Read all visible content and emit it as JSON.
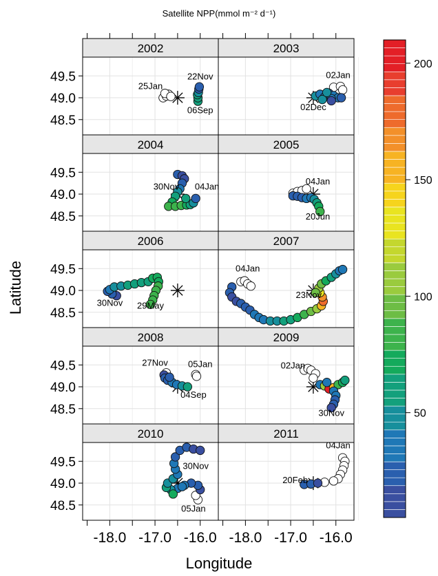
{
  "chart_data": {
    "type": "scatter",
    "title": "Satellite NPP(mmol m⁻² d⁻¹)",
    "xlabel": "Longitude",
    "ylabel": "Latitude",
    "xlim": [
      -18.6,
      -15.6
    ],
    "ylim": [
      48.15,
      49.93
    ],
    "x_ticks": [
      -18.0,
      -17.0,
      -16.0
    ],
    "x_tick_labels": [
      "-18.0",
      "-17.0",
      "-16.0"
    ],
    "y_ticks": [
      48.5,
      49.0,
      49.5
    ],
    "y_tick_labels": [
      "48.5",
      "49.0",
      "49.5"
    ],
    "grid": true,
    "station": {
      "lon": -16.5,
      "lat": 49.0
    },
    "colorbar": {
      "range": [
        5,
        210
      ],
      "ticks": [
        50,
        100,
        150,
        200
      ],
      "tick_labels": [
        "50",
        "100",
        "150",
        "200"
      ],
      "colors": [
        "#3a4fa0",
        "#2a5fae",
        "#1f78b6",
        "#178f9c",
        "#13a07c",
        "#14aa5c",
        "#3db34c",
        "#6dbd45",
        "#9acb3e",
        "#c4d72e",
        "#e9e420",
        "#f6d41d",
        "#f7b323",
        "#f3902a",
        "#ee6b2c",
        "#e83e2e",
        "#e31f26"
      ]
    },
    "panels": [
      {
        "year": "2002",
        "labels": [
          {
            "text": "25Jan",
            "lon": -17.1,
            "lat": 49.2
          },
          {
            "text": "22Nov",
            "lon": -16.0,
            "lat": 49.42
          },
          {
            "text": "06Sep",
            "lon": -16.0,
            "lat": 48.65
          }
        ],
        "points": [
          [
            -16.82,
            49.0,
            null
          ],
          [
            -16.75,
            49.04,
            null
          ],
          [
            -16.7,
            49.08,
            null
          ],
          [
            -16.78,
            49.1,
            null
          ],
          [
            -16.65,
            49.03,
            null
          ],
          [
            -16.05,
            48.92,
            60
          ],
          [
            -16.05,
            49.0,
            58
          ],
          [
            -16.06,
            49.07,
            55
          ],
          [
            -16.04,
            49.12,
            45
          ],
          [
            -16.03,
            49.2,
            28
          ],
          [
            -16.02,
            49.25,
            20
          ]
        ]
      },
      {
        "year": "2003",
        "labels": [
          {
            "text": "02Jan",
            "lon": -15.95,
            "lat": 49.45
          },
          {
            "text": "02Dec",
            "lon": -16.5,
            "lat": 48.72
          }
        ],
        "points": [
          [
            -16.05,
            49.24,
            null
          ],
          [
            -15.9,
            49.26,
            null
          ],
          [
            -15.85,
            49.18,
            null
          ],
          [
            -16.45,
            49.04,
            45
          ],
          [
            -16.35,
            49.08,
            38
          ],
          [
            -16.25,
            49.02,
            30
          ],
          [
            -16.15,
            49.1,
            22
          ],
          [
            -16.05,
            49.05,
            35
          ],
          [
            -15.95,
            49.0,
            40
          ],
          [
            -16.3,
            48.96,
            42
          ],
          [
            -16.1,
            48.98,
            30
          ],
          [
            -15.88,
            49.0,
            25
          ],
          [
            -16.1,
            48.93,
            10
          ],
          [
            -16.2,
            49.12,
            42
          ]
        ]
      },
      {
        "year": "2004",
        "labels": [
          {
            "text": "30Nov",
            "lon": -16.75,
            "lat": 49.1
          },
          {
            "text": "04Jan",
            "lon": -15.85,
            "lat": 49.1
          }
        ],
        "points": [
          [
            -16.5,
            49.45,
            20
          ],
          [
            -16.4,
            49.42,
            15
          ],
          [
            -16.35,
            49.35,
            10
          ],
          [
            -16.4,
            49.25,
            20
          ],
          [
            -16.45,
            49.12,
            30
          ],
          [
            -16.5,
            49.05,
            45
          ],
          [
            -16.55,
            48.95,
            60
          ],
          [
            -16.62,
            48.82,
            70
          ],
          [
            -16.7,
            48.72,
            80
          ],
          [
            -16.55,
            48.72,
            82
          ],
          [
            -16.42,
            48.74,
            80
          ],
          [
            -16.3,
            48.75,
            70
          ],
          [
            -16.22,
            48.76,
            60
          ],
          [
            -16.15,
            48.8,
            50
          ],
          [
            -16.1,
            48.9,
            20
          ],
          [
            -16.32,
            48.9,
            55
          ]
        ]
      },
      {
        "year": "2005",
        "labels": [
          {
            "text": "04Jan",
            "lon": -16.4,
            "lat": 49.22
          },
          {
            "text": "20Jun",
            "lon": -16.4,
            "lat": 48.42
          }
        ],
        "points": [
          [
            -16.95,
            49.02,
            null
          ],
          [
            -16.85,
            49.06,
            null
          ],
          [
            -16.75,
            49.08,
            null
          ],
          [
            -16.65,
            49.12,
            null
          ],
          [
            -16.95,
            48.96,
            20
          ],
          [
            -16.85,
            48.95,
            22
          ],
          [
            -16.75,
            48.92,
            25
          ],
          [
            -16.65,
            48.9,
            30
          ],
          [
            -16.55,
            48.92,
            40
          ],
          [
            -16.48,
            48.88,
            50
          ],
          [
            -16.42,
            48.8,
            65
          ],
          [
            -16.38,
            48.72,
            70
          ],
          [
            -16.35,
            48.6,
            85
          ]
        ]
      },
      {
        "year": "2006",
        "labels": [
          {
            "text": "30Nov",
            "lon": -18.0,
            "lat": 48.65
          },
          {
            "text": "29May",
            "lon": -17.1,
            "lat": 48.58
          }
        ],
        "points": [
          [
            -17.85,
            48.88,
            15
          ],
          [
            -17.95,
            48.92,
            20
          ],
          [
            -18.05,
            48.98,
            25
          ],
          [
            -18.0,
            49.02,
            30
          ],
          [
            -17.9,
            49.08,
            45
          ],
          [
            -17.75,
            49.1,
            50
          ],
          [
            -17.6,
            49.12,
            55
          ],
          [
            -17.45,
            49.15,
            60
          ],
          [
            -17.3,
            49.18,
            62
          ],
          [
            -17.15,
            49.2,
            65
          ],
          [
            -17.05,
            49.28,
            70
          ],
          [
            -16.95,
            49.3,
            72
          ],
          [
            -16.92,
            49.2,
            75
          ],
          [
            -16.93,
            49.1,
            78
          ],
          [
            -16.98,
            49.0,
            80
          ],
          [
            -17.02,
            48.88,
            82
          ],
          [
            -17.05,
            48.78,
            85
          ],
          [
            -17.1,
            48.68,
            88
          ]
        ]
      },
      {
        "year": "2007",
        "labels": [
          {
            "text": "04Jan",
            "lon": -17.95,
            "lat": 49.43
          },
          {
            "text": "23Nov",
            "lon": -16.6,
            "lat": 48.83
          }
        ],
        "points": [
          [
            -18.1,
            49.2,
            null
          ],
          [
            -18.02,
            49.22,
            null
          ],
          [
            -17.95,
            49.15,
            null
          ],
          [
            -17.88,
            49.1,
            null
          ],
          [
            -18.3,
            49.08,
            20
          ],
          [
            -18.35,
            48.95,
            18
          ],
          [
            -18.3,
            48.85,
            15
          ],
          [
            -18.2,
            48.75,
            15
          ],
          [
            -18.1,
            48.7,
            18
          ],
          [
            -18.0,
            48.62,
            22
          ],
          [
            -17.9,
            48.55,
            25
          ],
          [
            -17.8,
            48.45,
            30
          ],
          [
            -17.7,
            48.38,
            35
          ],
          [
            -17.6,
            48.33,
            40
          ],
          [
            -17.45,
            48.3,
            45
          ],
          [
            -17.3,
            48.3,
            50
          ],
          [
            -17.15,
            48.3,
            55
          ],
          [
            -17.0,
            48.33,
            60
          ],
          [
            -16.85,
            48.38,
            70
          ],
          [
            -16.7,
            48.45,
            80
          ],
          [
            -16.55,
            48.52,
            90
          ],
          [
            -16.42,
            48.58,
            110
          ],
          [
            -16.32,
            48.65,
            150
          ],
          [
            -16.28,
            48.75,
            180
          ],
          [
            -16.3,
            48.85,
            170
          ],
          [
            -16.35,
            48.95,
            130
          ],
          [
            -16.38,
            49.05,
            110
          ],
          [
            -16.32,
            49.15,
            90
          ],
          [
            -16.22,
            49.22,
            70
          ],
          [
            -16.1,
            49.3,
            55
          ],
          [
            -16.0,
            49.38,
            45
          ],
          [
            -15.92,
            49.45,
            35
          ],
          [
            -15.85,
            49.48,
            30
          ],
          [
            -16.45,
            48.95,
            100
          ]
        ]
      },
      {
        "year": "2008",
        "labels": [
          {
            "text": "27Nov",
            "lon": -17.0,
            "lat": 49.48
          },
          {
            "text": "05Jan",
            "lon": -16.0,
            "lat": 49.45
          },
          {
            "text": "04Sep",
            "lon": -16.15,
            "lat": 48.75
          }
        ],
        "points": [
          [
            -16.1,
            49.28,
            null
          ],
          [
            -16.08,
            49.24,
            null
          ],
          [
            -16.75,
            49.32,
            null
          ],
          [
            -16.8,
            49.27,
            15
          ],
          [
            -16.78,
            49.2,
            20
          ],
          [
            -16.72,
            49.15,
            25
          ],
          [
            -16.62,
            49.1,
            30
          ],
          [
            -16.52,
            49.05,
            40
          ],
          [
            -16.4,
            49.02,
            50
          ],
          [
            -16.28,
            49.0,
            60
          ],
          [
            -16.68,
            49.22,
            18
          ]
        ]
      },
      {
        "year": "2009",
        "labels": [
          {
            "text": "02Jan",
            "lon": -16.95,
            "lat": 49.42
          },
          {
            "text": "30Nov",
            "lon": -16.1,
            "lat": 48.33
          }
        ],
        "points": [
          [
            -16.7,
            49.38,
            null
          ],
          [
            -16.62,
            49.42,
            null
          ],
          [
            -16.55,
            49.38,
            null
          ],
          [
            -16.45,
            49.3,
            null
          ],
          [
            -16.5,
            49.2,
            null
          ],
          [
            -16.35,
            49.05,
            35
          ],
          [
            -16.25,
            49.02,
            110
          ],
          [
            -16.15,
            48.95,
            200
          ],
          [
            -16.05,
            48.98,
            150
          ],
          [
            -15.95,
            49.05,
            80
          ],
          [
            -15.85,
            49.1,
            70
          ],
          [
            -15.8,
            49.15,
            65
          ],
          [
            -16.2,
            49.1,
            40
          ],
          [
            -16.05,
            48.9,
            35
          ],
          [
            -16.0,
            48.8,
            30
          ],
          [
            -16.02,
            48.7,
            25
          ],
          [
            -16.05,
            48.6,
            20
          ],
          [
            -16.1,
            48.52,
            15
          ]
        ]
      },
      {
        "year": "2010",
        "labels": [
          {
            "text": "30Nov",
            "lon": -16.1,
            "lat": 49.32
          },
          {
            "text": "05Jan",
            "lon": -16.15,
            "lat": 48.35
          }
        ],
        "points": [
          [
            -16.05,
            48.62,
            null
          ],
          [
            -16.1,
            48.72,
            null
          ],
          [
            -16.0,
            48.85,
            15
          ],
          [
            -16.05,
            48.95,
            20
          ],
          [
            -16.2,
            49.0,
            25
          ],
          [
            -16.35,
            48.95,
            30
          ],
          [
            -16.5,
            48.88,
            40
          ],
          [
            -16.65,
            48.85,
            50
          ],
          [
            -16.75,
            48.9,
            55
          ],
          [
            -16.72,
            49.0,
            50
          ],
          [
            -16.6,
            49.1,
            45
          ],
          [
            -16.5,
            49.2,
            40
          ],
          [
            -16.55,
            49.32,
            35
          ],
          [
            -16.58,
            49.45,
            30
          ],
          [
            -16.55,
            49.6,
            25
          ],
          [
            -16.45,
            49.75,
            20
          ],
          [
            -16.3,
            49.82,
            18
          ],
          [
            -16.15,
            49.78,
            15
          ],
          [
            -16.0,
            49.75,
            12
          ],
          [
            -16.4,
            48.92,
            35
          ],
          [
            -16.6,
            48.75,
            70
          ]
        ]
      },
      {
        "year": "2011",
        "labels": [
          {
            "text": "04Jan",
            "lon": -15.95,
            "lat": 49.8
          },
          {
            "text": "20Feb",
            "lon": -16.9,
            "lat": 49.0
          }
        ],
        "points": [
          [
            -15.85,
            49.58,
            null
          ],
          [
            -15.8,
            49.5,
            null
          ],
          [
            -15.82,
            49.4,
            null
          ],
          [
            -15.85,
            49.3,
            null
          ],
          [
            -15.9,
            49.2,
            null
          ],
          [
            -15.95,
            49.1,
            null
          ],
          [
            -16.05,
            49.05,
            null
          ],
          [
            -16.25,
            49.02,
            null
          ],
          [
            -16.7,
            48.97,
            20
          ],
          [
            -16.55,
            48.98,
            18
          ],
          [
            -16.4,
            49.0,
            15
          ]
        ]
      }
    ]
  }
}
